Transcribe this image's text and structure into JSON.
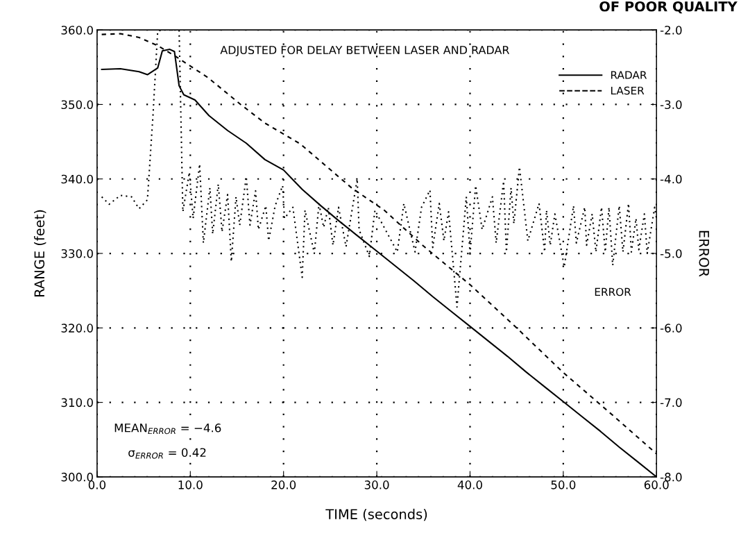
{
  "chart_data": {
    "type": "line",
    "xlabel": "TIME (seconds)",
    "ylabel": "RANGE (feet)",
    "y2label": "ERROR",
    "xlim": [
      0,
      60
    ],
    "xticks": [
      {
        "value": 0,
        "label": "0.0"
      },
      {
        "value": 10,
        "label": "10.0"
      },
      {
        "value": 20,
        "label": "20.0"
      },
      {
        "value": 30,
        "label": "30.0"
      },
      {
        "value": 40,
        "label": "40.0"
      },
      {
        "value": 50,
        "label": "50.0"
      },
      {
        "value": 60,
        "label": "60.0"
      }
    ],
    "ylim": [
      300,
      360
    ],
    "yticks": [
      {
        "value": 300,
        "label": "300.0"
      },
      {
        "value": 310,
        "label": "310.0"
      },
      {
        "value": 320,
        "label": "320.0"
      },
      {
        "value": 330,
        "label": "330.0"
      },
      {
        "value": 340,
        "label": "340.0"
      },
      {
        "value": 350,
        "label": "350.0"
      },
      {
        "value": 360,
        "label": "360.0"
      }
    ],
    "y2lim": [
      -8,
      -2
    ],
    "y2ticks": [
      {
        "value": -8,
        "label": "-8.0"
      },
      {
        "value": -7,
        "label": "-7.0"
      },
      {
        "value": -6,
        "label": "-6.0"
      },
      {
        "value": -5,
        "label": "-5.0"
      },
      {
        "value": -4,
        "label": "-4.0"
      },
      {
        "value": -3,
        "label": "-3.0"
      },
      {
        "value": -2,
        "label": "-2.0"
      }
    ],
    "grid": true,
    "legend": "top right",
    "series": [
      {
        "name": "RADAR",
        "color": "#000000",
        "line_style": "solid",
        "x": [
          0.5,
          2.5,
          4.5,
          5.4,
          6.5,
          7.0,
          7.8,
          8.3,
          8.8,
          9.3,
          10.5,
          12,
          14,
          16,
          18,
          20,
          22,
          24,
          26,
          28,
          30,
          32,
          34,
          36,
          38,
          40,
          42,
          44,
          46,
          48,
          50,
          52,
          54,
          56,
          58,
          60
        ],
        "values": [
          354.7,
          354.8,
          354.4,
          354.0,
          354.9,
          357.2,
          357.4,
          357.1,
          352.5,
          351.3,
          350.6,
          348.5,
          346.5,
          344.8,
          342.6,
          341.2,
          338.6,
          336.4,
          334.3,
          332.3,
          330.3,
          328.3,
          326.3,
          324.2,
          322.2,
          320.2,
          318.2,
          316.2,
          314.1,
          312.1,
          310.1,
          308.1,
          306.1,
          304.0,
          302.0,
          300.0
        ]
      },
      {
        "name": "LASER",
        "color": "#000000",
        "line_style": "dashed",
        "x": [
          0.5,
          2.5,
          4.5,
          6.5,
          8.5,
          9.7,
          11.9,
          15.4,
          18,
          21.8,
          24.5,
          27.3,
          30.8,
          35,
          40,
          45,
          50,
          55,
          60
        ],
        "values": [
          359.4,
          359.5,
          359.0,
          357.9,
          356.4,
          355.4,
          353.6,
          350.0,
          347.5,
          344.7,
          341.8,
          338.8,
          335.8,
          331.0,
          325.8,
          320.0,
          314.0,
          308.6,
          303.1
        ]
      },
      {
        "name": "ERROR",
        "color": "#000000",
        "line_style": "dotted",
        "axis": "y2",
        "x": [
          0.5,
          1.3,
          2.5,
          3.7,
          4.5,
          5.4,
          6.0,
          6.5,
          6.9,
          8.6,
          8.8,
          9.2,
          9.9,
          10.3,
          11.0,
          11.4,
          12.1,
          12.4,
          13.0,
          13.4,
          14.0,
          14.4,
          14.9,
          15.3,
          16.0,
          16.4,
          17.0,
          17.3,
          18.1,
          18.4,
          19.1,
          19.9,
          20.1,
          21.0,
          22.0,
          22.3,
          23.3,
          23.8,
          24.3,
          24.8,
          25.3,
          25.9,
          26.7,
          27.9,
          28.1,
          29.2,
          29.8,
          32.2,
          32.9,
          34.1,
          34.8,
          35.7,
          36.0,
          36.7,
          37.2,
          37.7,
          38.6,
          39.6,
          40.0,
          40.6,
          41.3,
          42.4,
          42.8,
          43.6,
          43.9,
          44.4,
          44.7,
          45.3,
          46.2,
          47.4,
          48.0,
          48.2,
          48.6,
          49.1,
          50.1,
          51.1,
          51.4,
          52.3,
          52.5,
          53.1,
          53.5,
          54.1,
          54.5,
          54.9,
          55.3,
          56.0,
          56.4,
          57.0,
          57.3,
          57.8,
          58.1,
          58.7,
          59.0,
          59.8,
          60.0
        ],
        "values": [
          -4.24,
          -4.34,
          -4.22,
          -4.24,
          -4.4,
          -4.28,
          -3.14,
          -2.02,
          -2.0,
          -2.0,
          -2.0,
          -4.44,
          -3.91,
          -4.53,
          -3.8,
          -4.86,
          -4.12,
          -4.74,
          -4.07,
          -4.71,
          -4.21,
          -5.11,
          -4.24,
          -4.62,
          -3.97,
          -4.62,
          -4.16,
          -4.68,
          -4.36,
          -4.83,
          -4.36,
          -4.09,
          -4.53,
          -4.38,
          -5.32,
          -4.42,
          -5.0,
          -4.33,
          -4.65,
          -4.38,
          -4.89,
          -4.38,
          -4.91,
          -4.0,
          -4.68,
          -5.04,
          -4.42,
          -4.98,
          -4.33,
          -4.98,
          -4.38,
          -4.15,
          -4.92,
          -4.33,
          -4.83,
          -4.44,
          -5.72,
          -4.24,
          -5.0,
          -4.09,
          -4.68,
          -4.24,
          -4.86,
          -4.03,
          -4.98,
          -4.12,
          -4.6,
          -3.84,
          -4.83,
          -4.33,
          -4.98,
          -4.42,
          -4.89,
          -4.47,
          -5.18,
          -4.36,
          -4.86,
          -4.38,
          -4.89,
          -4.47,
          -4.98,
          -4.38,
          -4.98,
          -4.38,
          -5.16,
          -4.36,
          -4.98,
          -4.33,
          -4.98,
          -4.53,
          -4.95,
          -4.47,
          -5.0,
          -4.38,
          -4.53
        ]
      }
    ],
    "annotations": [
      "ADJUSTED FOR DELAY BETWEEN LASER AND RADAR",
      "MEAN$_{ERROR}$ = −4.6",
      "σ$_{ERROR}$ = 0.42",
      "OF POOR QUALITY"
    ]
  }
}
